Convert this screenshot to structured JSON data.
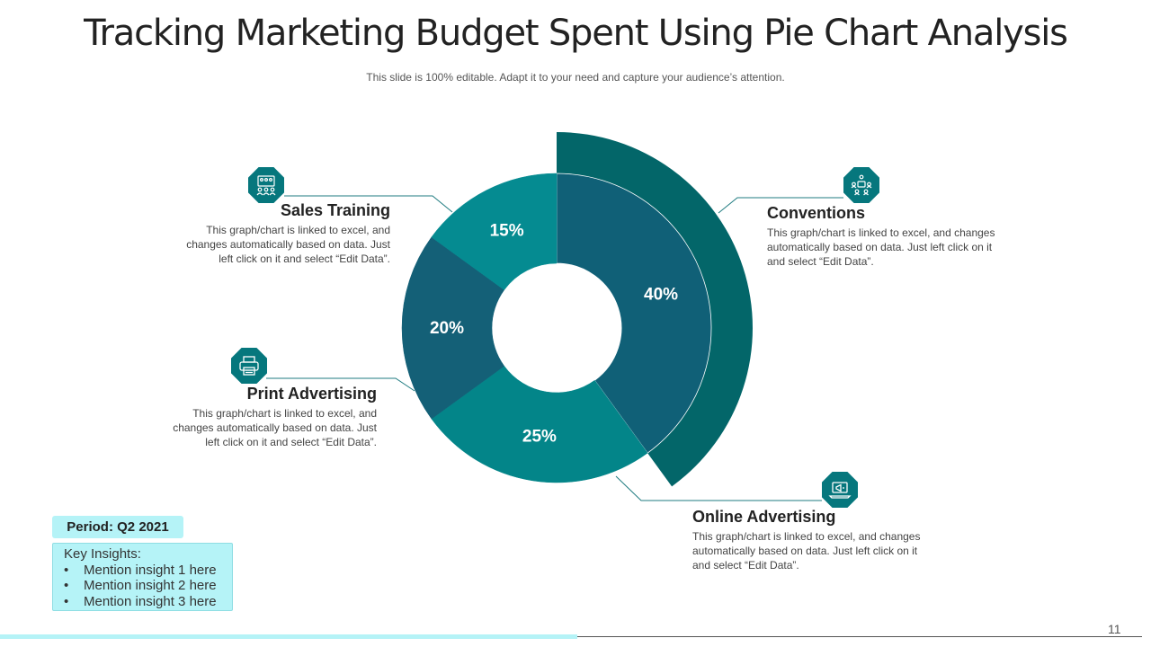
{
  "title": "Tracking Marketing Budget Spent Using Pie Chart Analysis",
  "subtitle": "This slide is 100% editable. Adapt it to your need and capture your audience’s attention.",
  "colors": {
    "conventions": "#106077",
    "conventions_highlight": "#036669",
    "online": "#038589",
    "print": "#146077",
    "sales": "#058b91",
    "icon_badge": "#06777d",
    "accent_light": "#b5f3f7",
    "leader_line": "#1f7b80"
  },
  "chart_data": {
    "type": "pie",
    "title": "Tracking Marketing Budget Spent Using Pie Chart Analysis",
    "style": "donut",
    "categories": [
      "Conventions",
      "Online Advertising",
      "Print Advertising",
      "Sales Training"
    ],
    "values": [
      40,
      25,
      20,
      15
    ],
    "labels": [
      "40%",
      "25%",
      "20%",
      "15%"
    ],
    "unit": "%",
    "highlighted": "Conventions"
  },
  "callouts": {
    "conventions": {
      "title": "Conventions",
      "desc": "This graph/chart is linked to excel, and changes automatically based on data. Just left click on it and select “Edit Data”.",
      "icon": "people-network-icon"
    },
    "online": {
      "title": "Online Advertising",
      "desc": "This graph/chart is linked to excel, and changes automatically based on data. Just left click on it and select “Edit Data”.",
      "icon": "laptop-megaphone-icon"
    },
    "print": {
      "title": "Print Advertising",
      "desc": "This graph/chart is linked to excel, and changes automatically based on data. Just left click on it and select “Edit Data”.",
      "icon": "printer-icon"
    },
    "sales": {
      "title": "Sales Training",
      "desc": "This graph/chart is linked to excel, and changes automatically based on data. Just left click on it and select “Edit Data”.",
      "icon": "presentation-group-icon"
    }
  },
  "period": "Period: Q2 2021",
  "insights": {
    "heading": "Key Insights:",
    "items": [
      "Mention insight 1 here",
      "Mention insight 2  here",
      "Mention insight 3 here"
    ]
  },
  "page_number": "11"
}
